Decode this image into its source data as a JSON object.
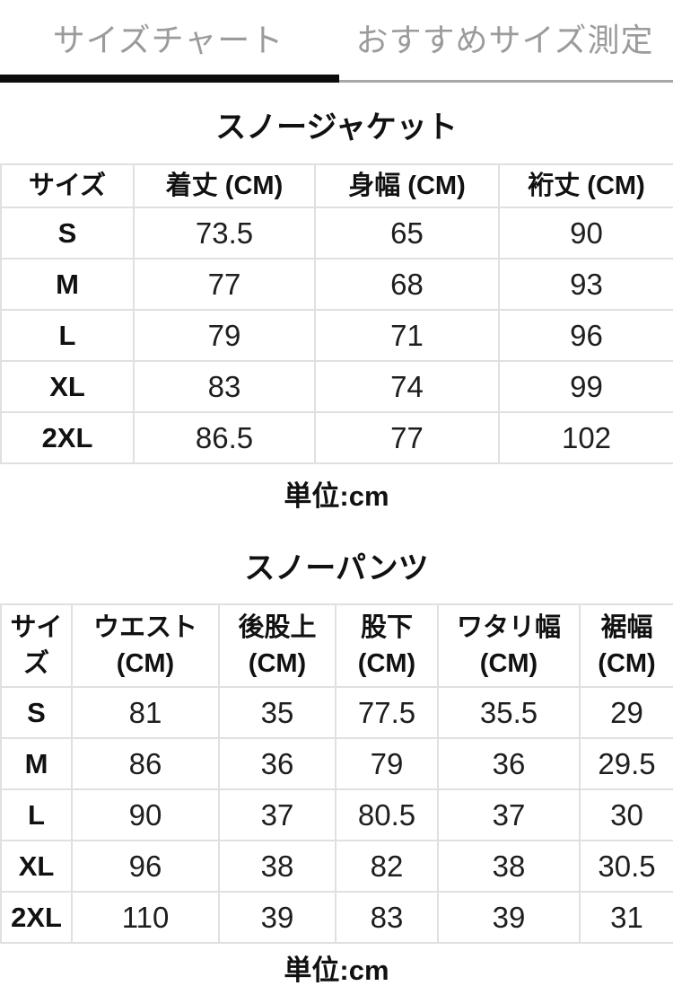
{
  "tabs": {
    "size_chart": "サイズチャート",
    "recommended": "おすすめサイズ測定"
  },
  "jacket": {
    "title": "スノージャケット",
    "columns": [
      "サイズ",
      "着丈 (CM)",
      "身幅 (CM)",
      "裄丈 (CM)"
    ],
    "rows": [
      [
        "S",
        "73.5",
        "65",
        "90"
      ],
      [
        "M",
        "77",
        "68",
        "93"
      ],
      [
        "L",
        "79",
        "71",
        "96"
      ],
      [
        "XL",
        "83",
        "74",
        "99"
      ],
      [
        "2XL",
        "86.5",
        "77",
        "102"
      ]
    ],
    "unit_note": "単位:cm"
  },
  "pants": {
    "title": "スノーパンツ",
    "columns": [
      {
        "label": "サイズ",
        "unit": ""
      },
      {
        "label": "ウエスト",
        "unit": "(CM)"
      },
      {
        "label": "後股上",
        "unit": "(CM)"
      },
      {
        "label": "股下",
        "unit": "(CM)"
      },
      {
        "label": "ワタリ幅",
        "unit": "(CM)"
      },
      {
        "label": "裾幅",
        "unit": "(CM)"
      }
    ],
    "rows": [
      [
        "S",
        "81",
        "35",
        "77.5",
        "35.5",
        "29"
      ],
      [
        "M",
        "86",
        "36",
        "79",
        "36",
        "29.5"
      ],
      [
        "L",
        "90",
        "37",
        "80.5",
        "37",
        "30"
      ],
      [
        "XL",
        "96",
        "38",
        "82",
        "38",
        "30.5"
      ],
      [
        "2XL",
        "110",
        "39",
        "83",
        "39",
        "31"
      ]
    ],
    "unit_note": "単位:cm"
  },
  "colors": {
    "active_tab_indicator": "#0c0c0c",
    "tab_text": "#9b9b9b",
    "tab_rail": "#a6a6a6",
    "table_border": "#e0e0e0",
    "text": "#111111",
    "background": "#ffffff"
  }
}
